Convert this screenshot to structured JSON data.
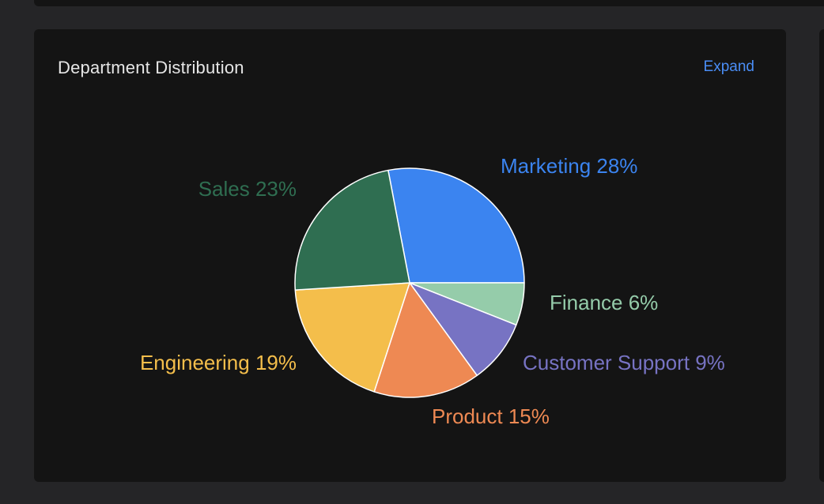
{
  "panel": {
    "title": "Department Distribution",
    "expand_label": "Expand"
  },
  "chart_data": {
    "type": "pie",
    "title": "Department Distribution",
    "slices": [
      {
        "label": "Marketing",
        "value": 28,
        "display": "Marketing 28%",
        "color": "#3b84f0"
      },
      {
        "label": "Finance",
        "value": 6,
        "display": "Finance 6%",
        "color": "#95ccaa"
      },
      {
        "label": "Customer Support",
        "value": 9,
        "display": "Customer Support 9%",
        "color": "#7773c3"
      },
      {
        "label": "Product",
        "value": 15,
        "display": "Product 15%",
        "color": "#ee8953"
      },
      {
        "label": "Engineering",
        "value": 19,
        "display": "Engineering 19%",
        "color": "#f4be4b"
      },
      {
        "label": "Sales",
        "value": 23,
        "display": "Sales 23%",
        "color": "#2f6e51"
      }
    ],
    "start_angle_deg": -6,
    "direction": "clockwise",
    "slice_border_color": "#ffffff"
  }
}
